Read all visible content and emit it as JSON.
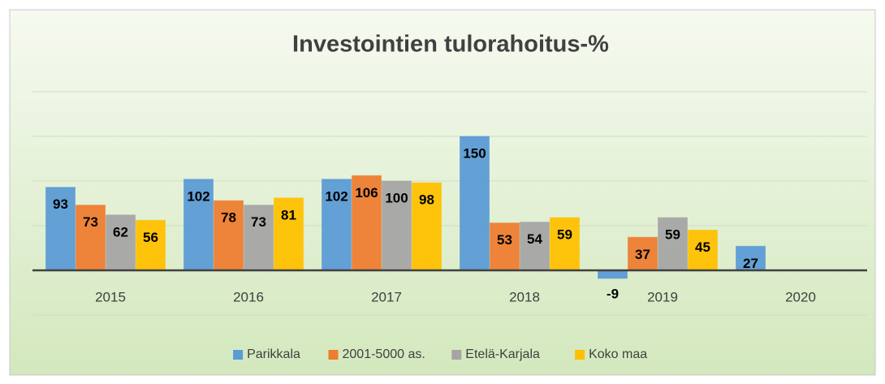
{
  "chart_data": {
    "type": "bar",
    "title": "Investointien tulorahoitus-%",
    "categories": [
      "2015",
      "2016",
      "2017",
      "2018",
      "2019",
      "2020"
    ],
    "series": [
      {
        "name": "Parikkala",
        "color": "#5b9bd5",
        "values": [
          93,
          102,
          102,
          150,
          -9,
          27
        ]
      },
      {
        "name": "2001-5000 as.",
        "color": "#ed7d31",
        "values": [
          73,
          78,
          106,
          53,
          37,
          null
        ]
      },
      {
        "name": "Etelä-Karjala",
        "color": "#a5a5a5",
        "values": [
          62,
          73,
          100,
          54,
          59,
          null
        ]
      },
      {
        "name": "Koko maa",
        "color": "#ffc000",
        "values": [
          56,
          81,
          98,
          59,
          45,
          null
        ]
      }
    ],
    "ylim": [
      -50,
      200
    ],
    "yticks": [
      -50,
      0,
      50,
      100,
      150,
      200
    ],
    "grid": true,
    "legend": "bottom"
  }
}
